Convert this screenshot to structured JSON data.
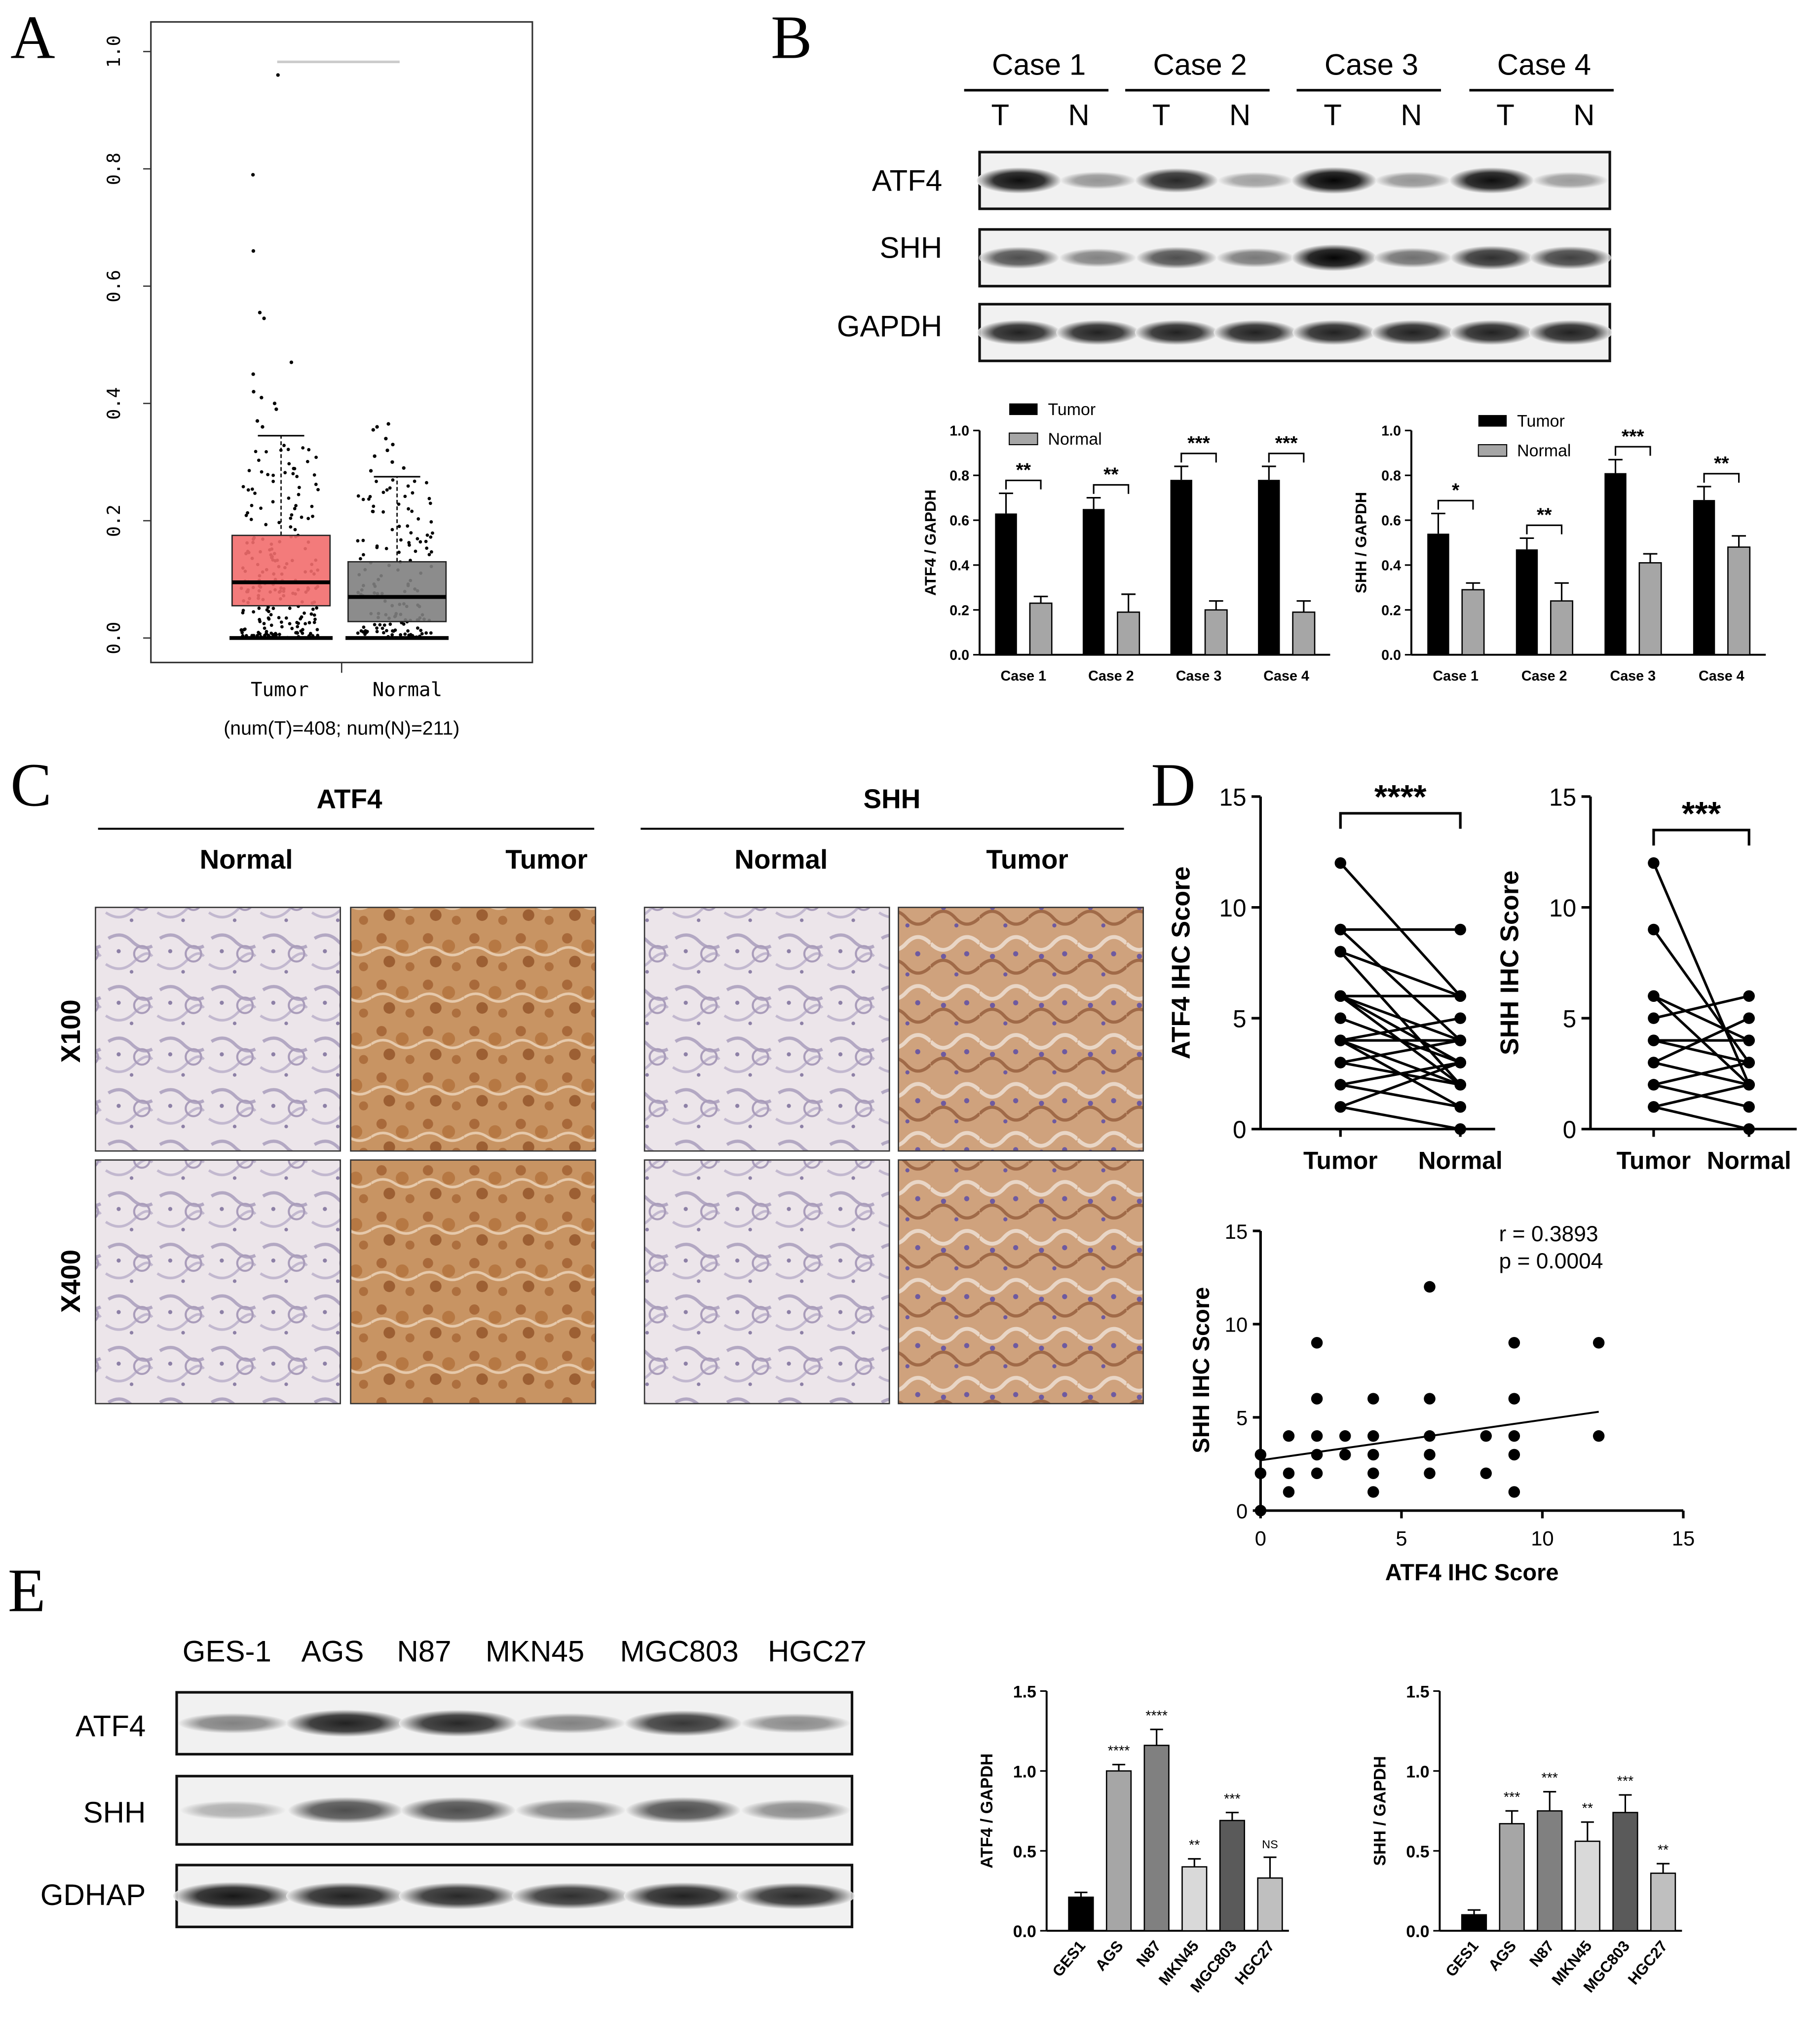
{
  "panels": {
    "a": {
      "letter": "A",
      "yticks": [
        "0.0",
        "0.2",
        "0.4",
        "0.6",
        "0.8",
        "1.0"
      ],
      "groups": [
        "Tumor",
        "Normal"
      ],
      "counts": "(num(T)=408; num(N)=211)",
      "colors": {
        "tumor": "#f26d6d",
        "normal": "#7f7f7f"
      },
      "box_data": [
        {
          "name": "Tumor",
          "q1": 0.055,
          "median": 0.095,
          "q3": 0.175,
          "whisker_low": 0.0,
          "whisker_high": 0.345
        },
        {
          "name": "Normal",
          "q1": 0.028,
          "median": 0.07,
          "q3": 0.13,
          "whisker_low": 0.0,
          "whisker_high": 0.275
        }
      ]
    },
    "b": {
      "letter": "B",
      "cases": [
        "Case 1",
        "Case 2",
        "Case 3",
        "Case 4"
      ],
      "lane_t": "T",
      "lane_n": "N",
      "blots": [
        "ATF4",
        "SHH",
        "GAPDH"
      ],
      "chart1": {
        "ylabel": "ATF4 / GAPDH",
        "legend": [
          "Tumor",
          "Normal"
        ],
        "yticks": [
          "0.0",
          "0.2",
          "0.4",
          "0.6",
          "0.8",
          "1.0"
        ],
        "categories": [
          "Case 1",
          "Case 2",
          "Case 3",
          "Case 4"
        ],
        "tumor": [
          0.63,
          0.65,
          0.78,
          0.78
        ],
        "normal": [
          0.23,
          0.19,
          0.2,
          0.19
        ],
        "sig": [
          "**",
          "**",
          "***",
          "***"
        ]
      },
      "chart2": {
        "ylabel": "SHH / GAPDH",
        "legend": [
          "Tumor",
          "Normal"
        ],
        "yticks": [
          "0.0",
          "0.2",
          "0.4",
          "0.6",
          "0.8",
          "1.0"
        ],
        "categories": [
          "Case 1",
          "Case 2",
          "Case 3",
          "Case 4"
        ],
        "tumor": [
          0.54,
          0.47,
          0.81,
          0.69
        ],
        "normal": [
          0.29,
          0.24,
          0.41,
          0.48
        ],
        "sig": [
          "*",
          "**",
          "***",
          "**"
        ]
      }
    },
    "c": {
      "letter": "C",
      "groups": [
        "ATF4",
        "SHH"
      ],
      "cols": [
        "Normal",
        "Tumor",
        "Normal",
        "Tumor"
      ],
      "rows": [
        "X100",
        "X400"
      ]
    },
    "d": {
      "letter": "D",
      "atf4": {
        "ylabel": "ATF4 IHC Score",
        "xcats": [
          "Tumor",
          "Normal"
        ],
        "yticks": [
          "0",
          "5",
          "10",
          "15"
        ],
        "sig": "****"
      },
      "shh": {
        "ylabel": "SHH IHC Score",
        "xcats": [
          "Tumor",
          "Normal"
        ],
        "yticks": [
          "0",
          "5",
          "10",
          "15"
        ],
        "sig": "***"
      },
      "scatter": {
        "xlabel": "ATF4 IHC Score",
        "ylabel": "SHH IHC Score",
        "ticks": [
          "0",
          "5",
          "10",
          "15"
        ],
        "r": "r = 0.3893",
        "p": "p = 0.0004"
      }
    },
    "e": {
      "letter": "E",
      "cells": [
        "GES-1",
        "AGS",
        "N87",
        "MKN45",
        "MGC803",
        "HGC27"
      ],
      "blots": [
        "ATF4",
        "SHH",
        "GDHAP"
      ],
      "chart1": {
        "ylabel": "ATF4 / GAPDH",
        "yticks": [
          "0.0",
          "0.5",
          "1.0",
          "1.5"
        ],
        "categories": [
          "GES1",
          "AGS",
          "N87",
          "MKN45",
          "MGC803",
          "HGC27"
        ],
        "values": [
          0.21,
          1.0,
          1.16,
          0.4,
          0.69,
          0.33
        ],
        "sig": [
          "",
          "****",
          "****",
          "**",
          "***",
          "NS"
        ]
      },
      "chart2": {
        "ylabel": "SHH / GAPDH",
        "yticks": [
          "0.0",
          "0.5",
          "1.0",
          "1.5"
        ],
        "categories": [
          "GES1",
          "AGS",
          "N87",
          "MKN45",
          "MGC803",
          "HGC27"
        ],
        "values": [
          0.1,
          0.67,
          0.75,
          0.56,
          0.74,
          0.36
        ],
        "sig": [
          "",
          "***",
          "***",
          "**",
          "***",
          "**"
        ]
      }
    }
  },
  "chart_data": [
    {
      "type": "bar",
      "ylabel": "ATF4 / GAPDH",
      "categories": [
        "Case 1",
        "Case 2",
        "Case 3",
        "Case 4"
      ],
      "series": [
        {
          "name": "Tumor",
          "values": [
            0.63,
            0.65,
            0.78,
            0.78
          ]
        },
        {
          "name": "Normal",
          "values": [
            0.23,
            0.19,
            0.2,
            0.19
          ]
        }
      ],
      "ylim": [
        0,
        1.0
      ]
    },
    {
      "type": "bar",
      "ylabel": "SHH / GAPDH",
      "categories": [
        "Case 1",
        "Case 2",
        "Case 3",
        "Case 4"
      ],
      "series": [
        {
          "name": "Tumor",
          "values": [
            0.54,
            0.47,
            0.81,
            0.69
          ]
        },
        {
          "name": "Normal",
          "values": [
            0.29,
            0.24,
            0.41,
            0.48
          ]
        }
      ],
      "ylim": [
        0,
        1.0
      ]
    },
    {
      "type": "line",
      "ylabel": "ATF4 IHC Score",
      "categories": [
        "Tumor",
        "Normal"
      ],
      "pairs": [
        [
          12,
          6
        ],
        [
          9,
          9
        ],
        [
          9,
          4
        ],
        [
          8,
          2
        ],
        [
          8,
          6
        ],
        [
          6,
          6
        ],
        [
          6,
          4
        ],
        [
          6,
          3
        ],
        [
          6,
          2
        ],
        [
          5,
          3
        ],
        [
          4,
          5
        ],
        [
          4,
          4
        ],
        [
          4,
          2
        ],
        [
          4,
          1
        ],
        [
          3,
          4
        ],
        [
          3,
          2
        ],
        [
          2,
          3
        ],
        [
          2,
          1
        ],
        [
          1,
          3
        ],
        [
          1,
          0
        ]
      ],
      "ylim": [
        0,
        15
      ]
    },
    {
      "type": "line",
      "ylabel": "SHH IHC Score",
      "categories": [
        "Tumor",
        "Normal"
      ],
      "pairs": [
        [
          12,
          2
        ],
        [
          9,
          3
        ],
        [
          6,
          4
        ],
        [
          6,
          2
        ],
        [
          5,
          6
        ],
        [
          4,
          3
        ],
        [
          4,
          4
        ],
        [
          3,
          5
        ],
        [
          3,
          2
        ],
        [
          2,
          3
        ],
        [
          2,
          1
        ],
        [
          1,
          2
        ],
        [
          1,
          0
        ]
      ],
      "ylim": [
        0,
        15
      ]
    },
    {
      "type": "scatter",
      "xlabel": "ATF4 IHC Score",
      "ylabel": "SHH IHC Score",
      "x": [
        0,
        0,
        0,
        1,
        1,
        1,
        2,
        2,
        2,
        2,
        2,
        3,
        3,
        4,
        4,
        4,
        4,
        4,
        6,
        6,
        6,
        6,
        6,
        8,
        8,
        9,
        9,
        9,
        9,
        9,
        12,
        12
      ],
      "y": [
        3,
        2,
        0,
        4,
        2,
        1,
        9,
        6,
        4,
        3,
        2,
        4,
        3,
        6,
        4,
        3,
        2,
        1,
        12,
        6,
        4,
        3,
        2,
        4,
        2,
        9,
        6,
        4,
        3,
        1,
        9,
        4
      ],
      "fit": {
        "x": [
          0,
          12
        ],
        "y": [
          2.7,
          5.3
        ]
      },
      "xlim": [
        0,
        15
      ],
      "ylim": [
        0,
        15
      ]
    },
    {
      "type": "bar",
      "ylabel": "ATF4 / GAPDH",
      "categories": [
        "GES1",
        "AGS",
        "N87",
        "MKN45",
        "MGC803",
        "HGC27"
      ],
      "values": [
        0.21,
        1.0,
        1.16,
        0.4,
        0.69,
        0.33
      ],
      "ylim": [
        0,
        1.5
      ]
    },
    {
      "type": "bar",
      "ylabel": "SHH / GAPDH",
      "categories": [
        "GES1",
        "AGS",
        "N87",
        "MKN45",
        "MGC803",
        "HGC27"
      ],
      "values": [
        0.1,
        0.67,
        0.75,
        0.56,
        0.74,
        0.36
      ],
      "ylim": [
        0,
        1.5
      ]
    }
  ]
}
